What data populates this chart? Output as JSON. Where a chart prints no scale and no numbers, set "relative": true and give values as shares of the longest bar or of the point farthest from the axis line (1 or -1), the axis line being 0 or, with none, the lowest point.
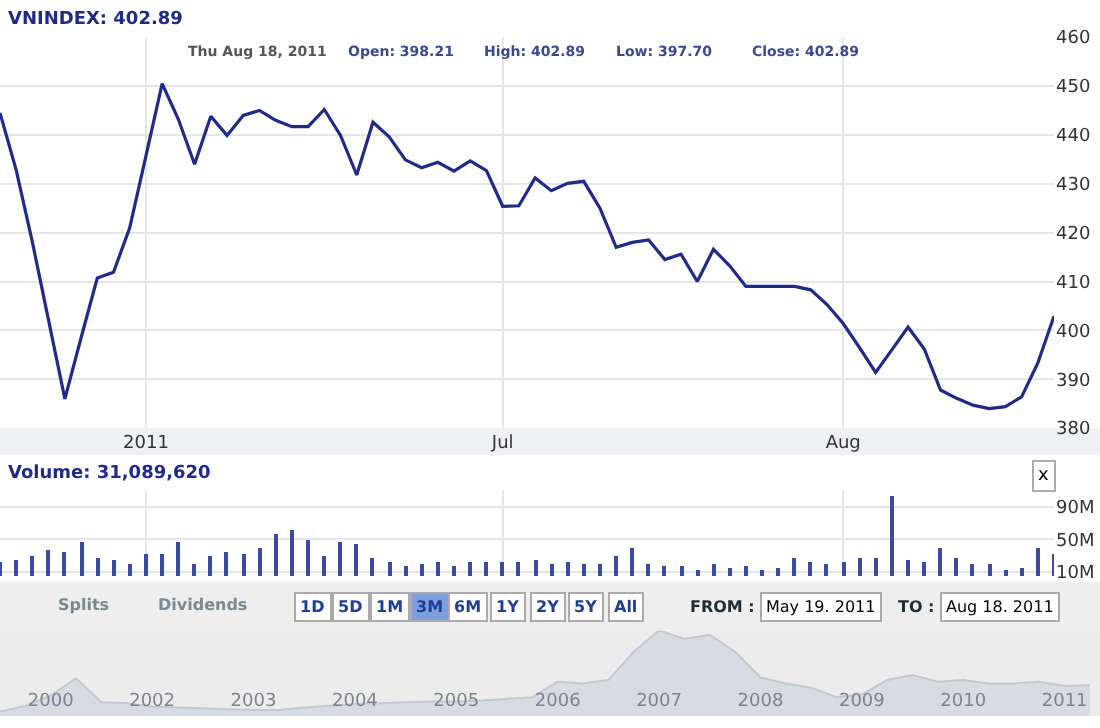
{
  "chart_data": [
    {
      "type": "line",
      "annotations": [
        "VNINDEX: 402.89",
        "Thu Aug 18, 2011",
        "Open: 398.21",
        "High: 402.89",
        "Low: 397.70",
        "Close: 402.89"
      ],
      "categories": [
        null,
        null,
        null,
        null,
        null,
        null,
        null,
        null,
        null,
        "2011",
        null,
        null,
        null,
        null,
        null,
        null,
        null,
        null,
        null,
        null,
        null,
        null,
        null,
        null,
        null,
        null,
        null,
        null,
        null,
        null,
        null,
        "Jul",
        null,
        null,
        null,
        null,
        null,
        null,
        null,
        null,
        null,
        null,
        null,
        null,
        null,
        null,
        null,
        null,
        null,
        null,
        null,
        null,
        "Aug",
        null,
        null,
        null,
        null,
        null,
        null,
        null,
        null,
        null,
        null,
        null,
        null,
        null
      ],
      "series": [
        {
          "color": "#1f2a8a",
          "values": [
            444.5,
            432.8,
            418,
            402,
            386,
            398.5,
            410.7,
            411.9,
            421,
            435.7,
            450.5,
            443.2,
            434,
            443.8,
            439.9,
            444,
            445,
            443,
            441.7,
            441.7,
            445.2,
            439.9,
            431.8,
            442.6,
            439.6,
            434.9,
            433.3,
            434.4,
            432.6,
            434.7,
            432.7,
            425.4,
            425.5,
            431.2,
            428.6,
            430.1,
            430.5,
            425,
            417,
            418,
            418.5,
            414.5,
            415.6,
            410,
            416.6,
            413.2,
            409,
            409,
            409,
            409,
            408.3,
            405.3,
            401.4,
            396.5,
            391.4,
            396,
            400.7,
            396.2,
            387.8,
            386.1,
            384.7,
            384,
            384.4,
            386.4,
            393.3,
            402.9
          ]
        }
      ],
      "ylim": [
        380,
        460
      ],
      "yticks": [
        380,
        390,
        400,
        410,
        420,
        430,
        440,
        450,
        460
      ],
      "grid": true
    },
    {
      "type": "bar",
      "annotations": [
        "Volume: 31,089,620",
        "x"
      ],
      "categories": [
        null,
        null,
        null,
        null,
        null,
        null,
        null,
        null,
        null,
        null,
        null,
        null,
        null,
        null,
        null,
        null,
        null,
        null,
        null,
        null,
        null,
        null,
        null,
        null,
        null,
        null,
        null,
        null,
        null,
        null,
        null,
        null,
        null,
        null,
        null,
        null,
        null,
        null,
        null,
        null,
        null,
        null,
        null,
        null,
        null,
        null,
        null,
        null,
        null,
        null,
        null,
        null,
        null,
        null,
        null,
        null,
        null,
        null,
        null,
        null,
        null,
        null,
        null,
        null,
        null,
        null
      ],
      "series": [
        {
          "color": "#3b4aa3",
          "values": [
            21,
            25,
            29,
            36,
            34,
            45,
            26,
            23,
            19,
            32,
            32,
            45,
            19,
            29,
            35,
            32,
            39,
            57,
            61,
            48,
            30,
            45,
            43,
            27,
            21,
            17,
            19,
            21,
            17,
            21,
            21,
            21,
            21,
            23,
            18,
            21,
            20,
            18,
            29,
            38,
            19,
            16,
            16,
            13,
            18,
            15,
            16,
            12,
            14,
            27,
            21,
            18,
            21,
            27,
            26,
            102,
            25,
            22,
            38,
            26,
            19,
            18,
            12,
            15,
            38,
            31
          ]
        }
      ],
      "ylim": [
        5,
        110
      ],
      "yticks": [
        {
          "value": 10,
          "label": "10M"
        },
        {
          "value": 50,
          "label": "50M"
        },
        {
          "value": 90,
          "label": "90M"
        }
      ],
      "grid": true,
      "tick_labels": "y"
    },
    {
      "type": "area",
      "relative": true,
      "annotations": [
        "Splits",
        "Dividends",
        "1D",
        "5D",
        "1M",
        "3M",
        "6M",
        "1Y",
        "2Y",
        "5Y",
        "All",
        "FROM :",
        "May 19. 2011",
        "TO :",
        "Aug 18. 2011"
      ],
      "categories": [
        null,
        null,
        "2000",
        null,
        null,
        null,
        "2002",
        null,
        null,
        null,
        "2003",
        null,
        null,
        null,
        "2004",
        null,
        null,
        null,
        "2005",
        null,
        null,
        null,
        "2006",
        null,
        null,
        null,
        "2007",
        null,
        null,
        null,
        "2008",
        null,
        null,
        null,
        "2009",
        null,
        null,
        null,
        "2010",
        null,
        null,
        null,
        "2011",
        null
      ],
      "series": [
        {
          "color": "#c3c8d2",
          "values": [
            0.05,
            0.12,
            0.24,
            0.44,
            0.16,
            0.15,
            0.11,
            0.1,
            0.09,
            0.08,
            0.07,
            0.07,
            0.1,
            0.12,
            0.14,
            0.15,
            0.16,
            0.17,
            0.17,
            0.18,
            0.2,
            0.22,
            0.4,
            0.38,
            0.42,
            0.75,
            1,
            0.9,
            0.95,
            0.75,
            0.45,
            0.38,
            0.33,
            0.22,
            0.25,
            0.42,
            0.48,
            0.4,
            0.42,
            0.38,
            0.38,
            0.4,
            0.35,
            0.36
          ]
        }
      ],
      "tick_labels": "x"
    }
  ]
}
